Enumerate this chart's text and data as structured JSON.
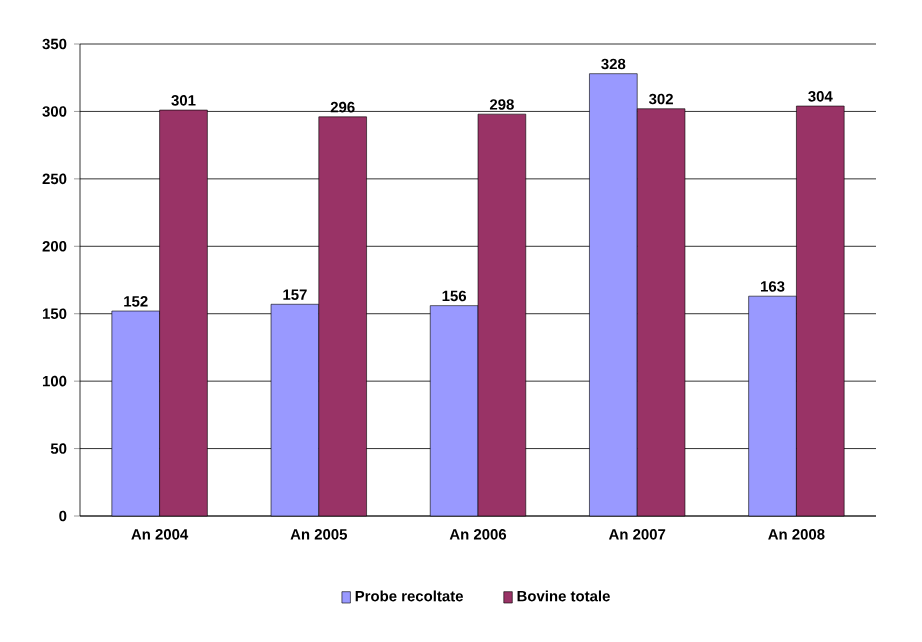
{
  "chart_data": {
    "type": "bar",
    "categories": [
      "An 2004",
      "An 2005",
      "An 2006",
      "An 2007",
      "An 2008"
    ],
    "series": [
      {
        "name": "Probe recoltate",
        "color": "#9999ff",
        "values": [
          152,
          157,
          156,
          328,
          163
        ]
      },
      {
        "name": "Bovine totale",
        "color": "#993366",
        "values": [
          301,
          296,
          298,
          302,
          304
        ]
      }
    ],
    "ylim": [
      0,
      350
    ],
    "yticks": [
      0,
      50,
      100,
      150,
      200,
      250,
      300,
      350
    ],
    "grid": "y",
    "legend": "bottom",
    "data_labels": true
  }
}
